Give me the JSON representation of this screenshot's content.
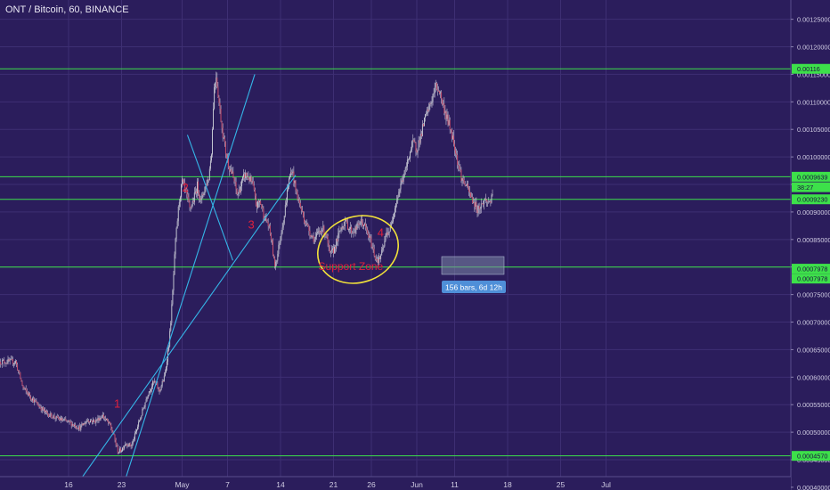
{
  "header": {
    "symbol_title": "ONT / Bitcoin, 60, BINANCE"
  },
  "colors": {
    "background": "#2b1d5c",
    "grid": "#3e2f73",
    "up_candle": "#c9cdd6",
    "down_candle": "#d04a66",
    "wick": "#c9c6d6",
    "horizontal_level": "#3de04a",
    "trendline": "#35b6e8",
    "annotation_text": "#e0203c",
    "ellipse": "#f2e23a",
    "price_tag": "#3de04a"
  },
  "chart_data": {
    "type": "candlestick",
    "x_tick_labels": [
      "16",
      "23",
      "May",
      "7",
      "14",
      "21",
      "26",
      "Jun",
      "11",
      "18",
      "25",
      "Jul"
    ],
    "y_tick_labels": [
      "0.00125000",
      "0.00120000",
      "0.00115000",
      "0.00110000",
      "0.00105000",
      "0.00100000",
      "0.00095000",
      "0.00090000",
      "0.00085000",
      "0.00080000",
      "0.00075000",
      "0.00070000",
      "0.00065000",
      "0.00060000",
      "0.00055000",
      "0.00050000",
      "0.00045000",
      "0.00040000"
    ],
    "ylim": [
      0.000395,
      0.001285
    ],
    "horizontal_levels": [
      0.00116,
      0.000964,
      0.000923,
      0.0008,
      0.000457
    ],
    "price_tags": [
      {
        "label": "0.00116",
        "value": 0.00116
      },
      {
        "label": "0.0009639",
        "value": 0.000964
      },
      {
        "label": "38:27",
        "value": 0.000945
      },
      {
        "label": "0.0009230",
        "value": 0.000923
      },
      {
        "label": "0.0007978",
        "value": 0.000797
      },
      {
        "label": "0.0007978",
        "value": 0.000779
      },
      {
        "label": "0.0004570",
        "value": 0.000457
      }
    ],
    "trendlines": [
      {
        "from": {
          "day": 23.0,
          "price": 0.000393
        },
        "to": {
          "day": 40.6,
          "price": 0.00115
        }
      },
      {
        "from": {
          "day": 16.5,
          "price": 0.000393
        },
        "to": {
          "day": 46.0,
          "price": 0.000967
        }
      },
      {
        "from": {
          "day": 31.7,
          "price": 0.00104
        },
        "to": {
          "day": 37.7,
          "price": 0.000812
        }
      }
    ],
    "annotations": [
      {
        "text": "1",
        "day": 22.0,
        "price": 0.000545
      },
      {
        "text": "2",
        "day": 31.0,
        "price": 0.000937
      },
      {
        "text": "3",
        "day": 39.7,
        "price": 0.00087
      },
      {
        "text": "4",
        "day": 56.8,
        "price": 0.000855
      },
      {
        "text": "Support Zone",
        "day": 49.0,
        "price": 0.000795
      }
    ],
    "measure_label": "156 bars, 6d 12h",
    "price_path": [
      [
        9.0,
        0.000628
      ],
      [
        10.0,
        0.00058
      ],
      [
        11.5,
        0.000556
      ],
      [
        13.0,
        0.000535
      ],
      [
        14.5,
        0.000525
      ],
      [
        16.0,
        0.000518
      ],
      [
        17.5,
        0.000508
      ],
      [
        18.5,
        0.000522
      ],
      [
        19.5,
        0.00052
      ],
      [
        20.5,
        0.00053
      ],
      [
        21.5,
        0.000512
      ],
      [
        22.0,
        0.000492
      ],
      [
        22.5,
        0.000465
      ],
      [
        23.0,
        0.000468
      ],
      [
        23.5,
        0.00048
      ],
      [
        24.3,
        0.000475
      ],
      [
        25.0,
        0.000505
      ],
      [
        25.8,
        0.00054
      ],
      [
        26.5,
        0.000572
      ],
      [
        27.3,
        0.000592
      ],
      [
        28.0,
        0.000575
      ],
      [
        28.7,
        0.000602
      ],
      [
        29.3,
        0.000665
      ],
      [
        29.7,
        0.000742
      ],
      [
        30.1,
        0.000842
      ],
      [
        30.6,
        0.00092
      ],
      [
        31.0,
        0.000955
      ],
      [
        31.5,
        0.000935
      ],
      [
        32.0,
        0.000905
      ],
      [
        32.5,
        0.000922
      ],
      [
        33.0,
        0.000948
      ],
      [
        33.5,
        0.00092
      ],
      [
        34.0,
        0.000945
      ],
      [
        34.5,
        0.000962
      ],
      [
        34.9,
        0.001015
      ],
      [
        35.2,
        0.00112
      ],
      [
        35.5,
        0.00115
      ],
      [
        35.9,
        0.001095
      ],
      [
        36.3,
        0.00105
      ],
      [
        36.8,
        0.001005
      ],
      [
        37.3,
        0.00098
      ],
      [
        37.8,
        0.00096
      ],
      [
        38.3,
        0.00093
      ],
      [
        38.8,
        0.00095
      ],
      [
        39.3,
        0.000968
      ],
      [
        39.8,
        0.000962
      ],
      [
        40.3,
        0.00095
      ],
      [
        40.8,
        0.00091
      ],
      [
        41.3,
        0.00092
      ],
      [
        41.8,
        0.000893
      ],
      [
        42.3,
        0.00088
      ],
      [
        42.8,
        0.00085
      ],
      [
        43.2,
        0.000802
      ],
      [
        43.6,
        0.000822
      ],
      [
        44.0,
        0.000858
      ],
      [
        44.5,
        0.000895
      ],
      [
        45.0,
        0.00095
      ],
      [
        45.5,
        0.000978
      ],
      [
        46.0,
        0.00094
      ],
      [
        46.5,
        0.000915
      ],
      [
        47.0,
        0.000892
      ],
      [
        47.5,
        0.000875
      ],
      [
        48.0,
        0.00086
      ],
      [
        48.5,
        0.00085
      ],
      [
        49.0,
        0.000862
      ],
      [
        49.5,
        0.00087
      ],
      [
        50.0,
        0.00086
      ],
      [
        50.5,
        0.000822
      ],
      [
        51.0,
        0.00083
      ],
      [
        51.5,
        0.00085
      ],
      [
        52.0,
        0.000872
      ],
      [
        52.5,
        0.000883
      ],
      [
        53.0,
        0.000872
      ],
      [
        53.5,
        0.000864
      ],
      [
        54.0,
        0.00087
      ],
      [
        54.5,
        0.000882
      ],
      [
        55.0,
        0.000878
      ],
      [
        55.5,
        0.00086
      ],
      [
        56.0,
        0.000842
      ],
      [
        56.5,
        0.000818
      ],
      [
        57.0,
        0.000812
      ],
      [
        57.5,
        0.00083
      ],
      [
        58.0,
        0.000862
      ],
      [
        58.5,
        0.000868
      ],
      [
        59.0,
        0.000905
      ],
      [
        59.5,
        0.00093
      ],
      [
        60.0,
        0.000955
      ],
      [
        60.5,
        0.000975
      ],
      [
        61.0,
        0.001005
      ],
      [
        61.5,
        0.001025
      ],
      [
        62.0,
        0.001015
      ],
      [
        62.5,
        0.001038
      ],
      [
        63.0,
        0.001065
      ],
      [
        63.5,
        0.001085
      ],
      [
        64.0,
        0.001105
      ],
      [
        64.5,
        0.001128
      ],
      [
        65.0,
        0.00112
      ],
      [
        65.5,
        0.001092
      ],
      [
        66.0,
        0.00107
      ],
      [
        66.5,
        0.001048
      ],
      [
        67.0,
        0.00102
      ],
      [
        67.5,
        0.000985
      ],
      [
        68.0,
        0.000958
      ],
      [
        68.5,
        0.000948
      ],
      [
        69.0,
        0.000932
      ],
      [
        69.5,
        0.000918
      ],
      [
        70.0,
        0.000905
      ],
      [
        70.5,
        0.000912
      ],
      [
        71.0,
        0.000922
      ],
      [
        71.5,
        0.000918
      ],
      [
        72.0,
        0.000925
      ]
    ]
  }
}
